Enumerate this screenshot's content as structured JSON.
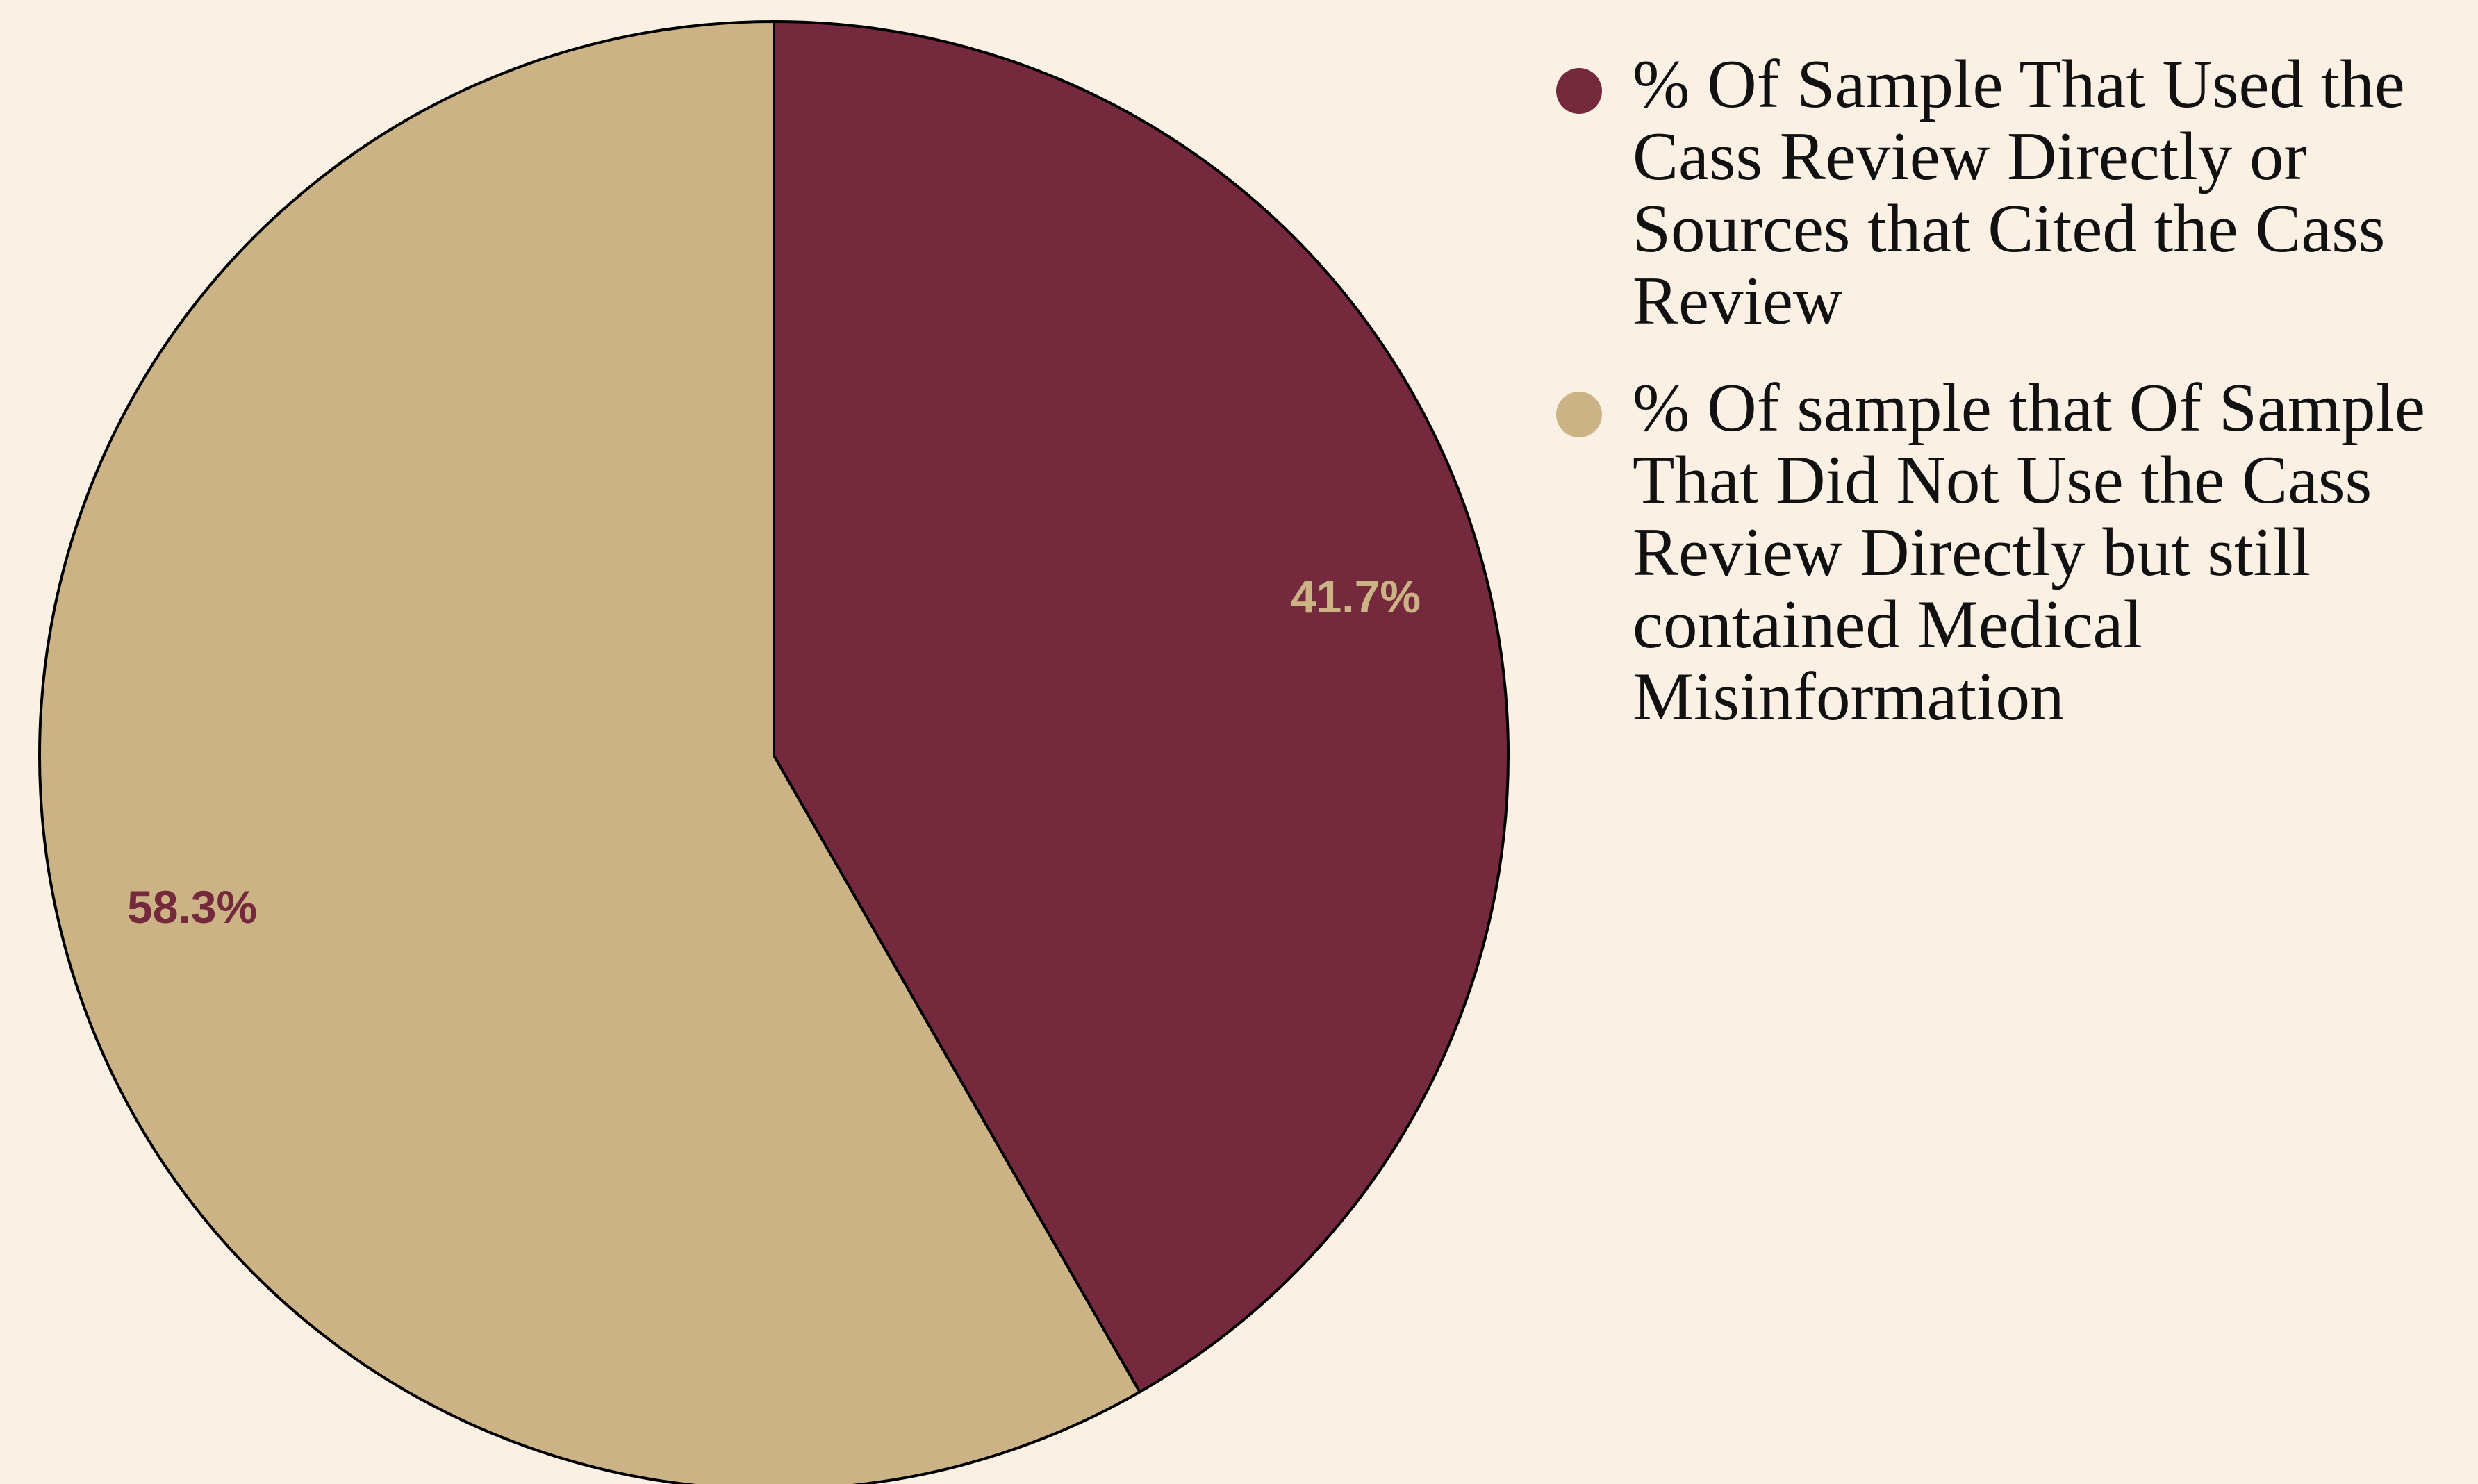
{
  "chart_data": {
    "type": "pie",
    "title": "",
    "slices": [
      {
        "label": "% Of Sample That Used the Cass Review Directly or Sources that Cited the Cass Review",
        "value": 41.7,
        "value_label": "41.7%",
        "color": "#74293c",
        "label_color": "#ccb385"
      },
      {
        "label": "% Of sample that Of Sample That Did Not Use the Cass Review Directly but still contained Medical Misinformation",
        "value": 58.3,
        "value_label": "58.3%",
        "color": "#ccb385",
        "label_color": "#74293c"
      }
    ],
    "start_angle": "12 o'clock",
    "direction": "clockwise",
    "legend_position": "right"
  }
}
